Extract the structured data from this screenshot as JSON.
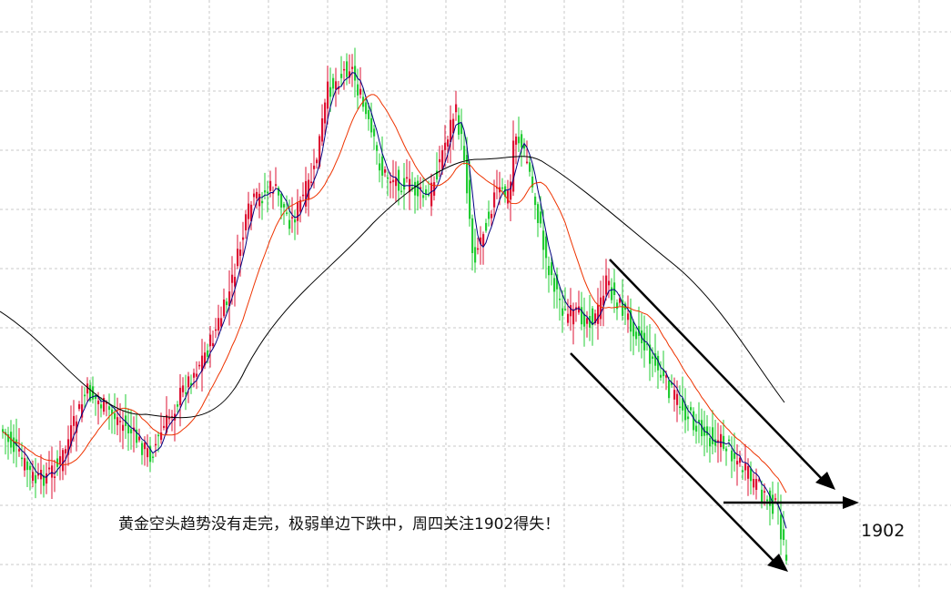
{
  "chart_data": {
    "type": "candlestick",
    "annotation": "黄金空头趋势没有走完，极弱单边下跌中，周四关注1902得失！",
    "level_label": "1902",
    "grid": true,
    "colors": {
      "up": "#dd1133",
      "down": "#22cc33",
      "ma_fast": "#000080",
      "ma_mid": "#ee3300",
      "ma_slow": "#000000",
      "arrow": "#000000"
    },
    "notes": "Price axis not printed; values are relative price levels estimated from the picture."
  }
}
